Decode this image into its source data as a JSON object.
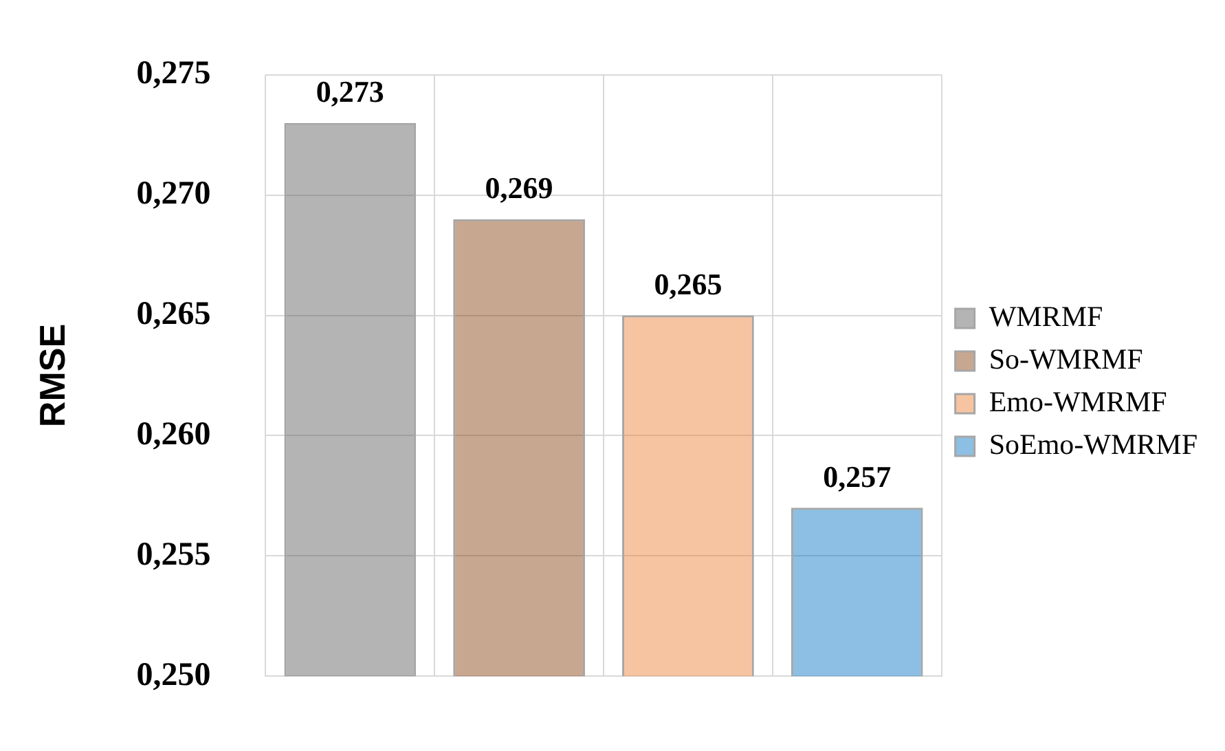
{
  "chart_data": {
    "type": "bar",
    "ylabel": "RMSE",
    "categories": [
      null,
      null,
      null,
      null
    ],
    "series": [
      {
        "name": "WMRMF",
        "color": "#595959",
        "values": [
          0.273,
          null,
          null,
          null
        ],
        "value_labels": [
          "0,273",
          null,
          null,
          null
        ]
      },
      {
        "name": "So-WMRMF",
        "color": "#843c0c",
        "values": [
          null,
          0.269,
          null,
          null
        ],
        "value_labels": [
          null,
          "0,269",
          null,
          null
        ]
      },
      {
        "name": "Emo-WMRMF",
        "color": "#ed7d31",
        "values": [
          null,
          null,
          0.265,
          null
        ],
        "value_labels": [
          null,
          null,
          "0,265",
          null
        ]
      },
      {
        "name": "SoEmo-WMRMF",
        "color": "#0070c0",
        "values": [
          null,
          null,
          null,
          0.257
        ],
        "value_labels": [
          null,
          null,
          null,
          "0,257"
        ]
      }
    ],
    "ylim": [
      0.25,
      0.275
    ],
    "yticks": [
      {
        "value": 0.25,
        "label": "0,250"
      },
      {
        "value": 0.255,
        "label": "0,255"
      },
      {
        "value": 0.26,
        "label": "0,260"
      },
      {
        "value": 0.265,
        "label": "0,265"
      },
      {
        "value": 0.27,
        "label": "0,270"
      },
      {
        "value": 0.275,
        "label": "0,275"
      }
    ],
    "grid": true,
    "legend": "right"
  }
}
